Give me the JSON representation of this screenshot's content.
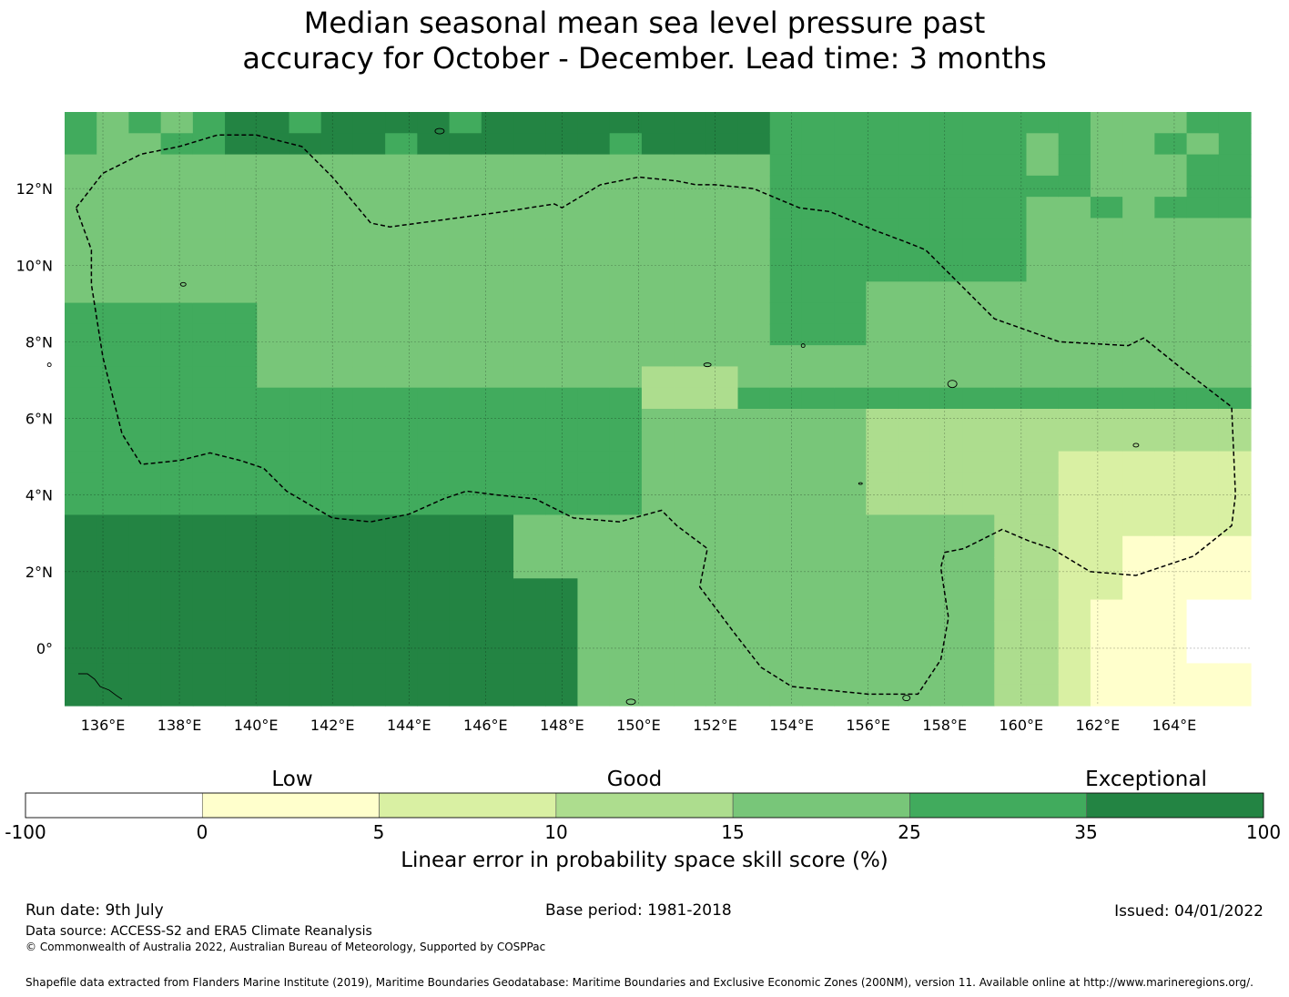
{
  "title": {
    "line1": "Median seasonal mean sea level pressure past",
    "line2": "accuracy for October - December. Lead time: 3 months"
  },
  "map": {
    "lon_range": [
      135,
      166
    ],
    "lat_range": [
      -1.5,
      14
    ],
    "lon_ticks": [
      "136°E",
      "138°E",
      "140°E",
      "142°E",
      "144°E",
      "146°E",
      "148°E",
      "150°E",
      "152°E",
      "154°E",
      "156°E",
      "158°E",
      "160°E",
      "162°E",
      "164°E"
    ],
    "lat_ticks": [
      "12°N",
      "10°N",
      "8°N",
      "6°N",
      "4°N",
      "2°N",
      "0°"
    ]
  },
  "chart_data": {
    "type": "heatmap",
    "colorbar": {
      "categories": [
        "Low",
        "Good",
        "Exceptional"
      ],
      "ticks": [
        "-100",
        "0",
        "5",
        "10",
        "15",
        "25",
        "35",
        "100"
      ],
      "colors": [
        "#ffffff",
        "#ffffcc",
        "#d9f0a3",
        "#addd8e",
        "#78c679",
        "#41ab5d",
        "#238443"
      ],
      "label": "Linear error in probability space skill score (%)"
    }
  },
  "footer": {
    "run_date": "Run date: 9th July",
    "base_period": "Base period: 1981-2018",
    "issued": "Issued: 04/01/2022",
    "data_source": "Data source: ACCESS-S2 and ERA5 Climate Reanalysis",
    "copyright": "© Commonwealth of Australia 2022, Australian Bureau of Meteorology, Supported by COSPPac",
    "shapefile": "Shapefile data extracted from Flanders Marine Institute (2019), Maritime Boundaries Geodatabase: Maritime Boundaries and Exclusive Economic Zones (200NM), version 11. Available online at http://www.marineregions.org/."
  }
}
